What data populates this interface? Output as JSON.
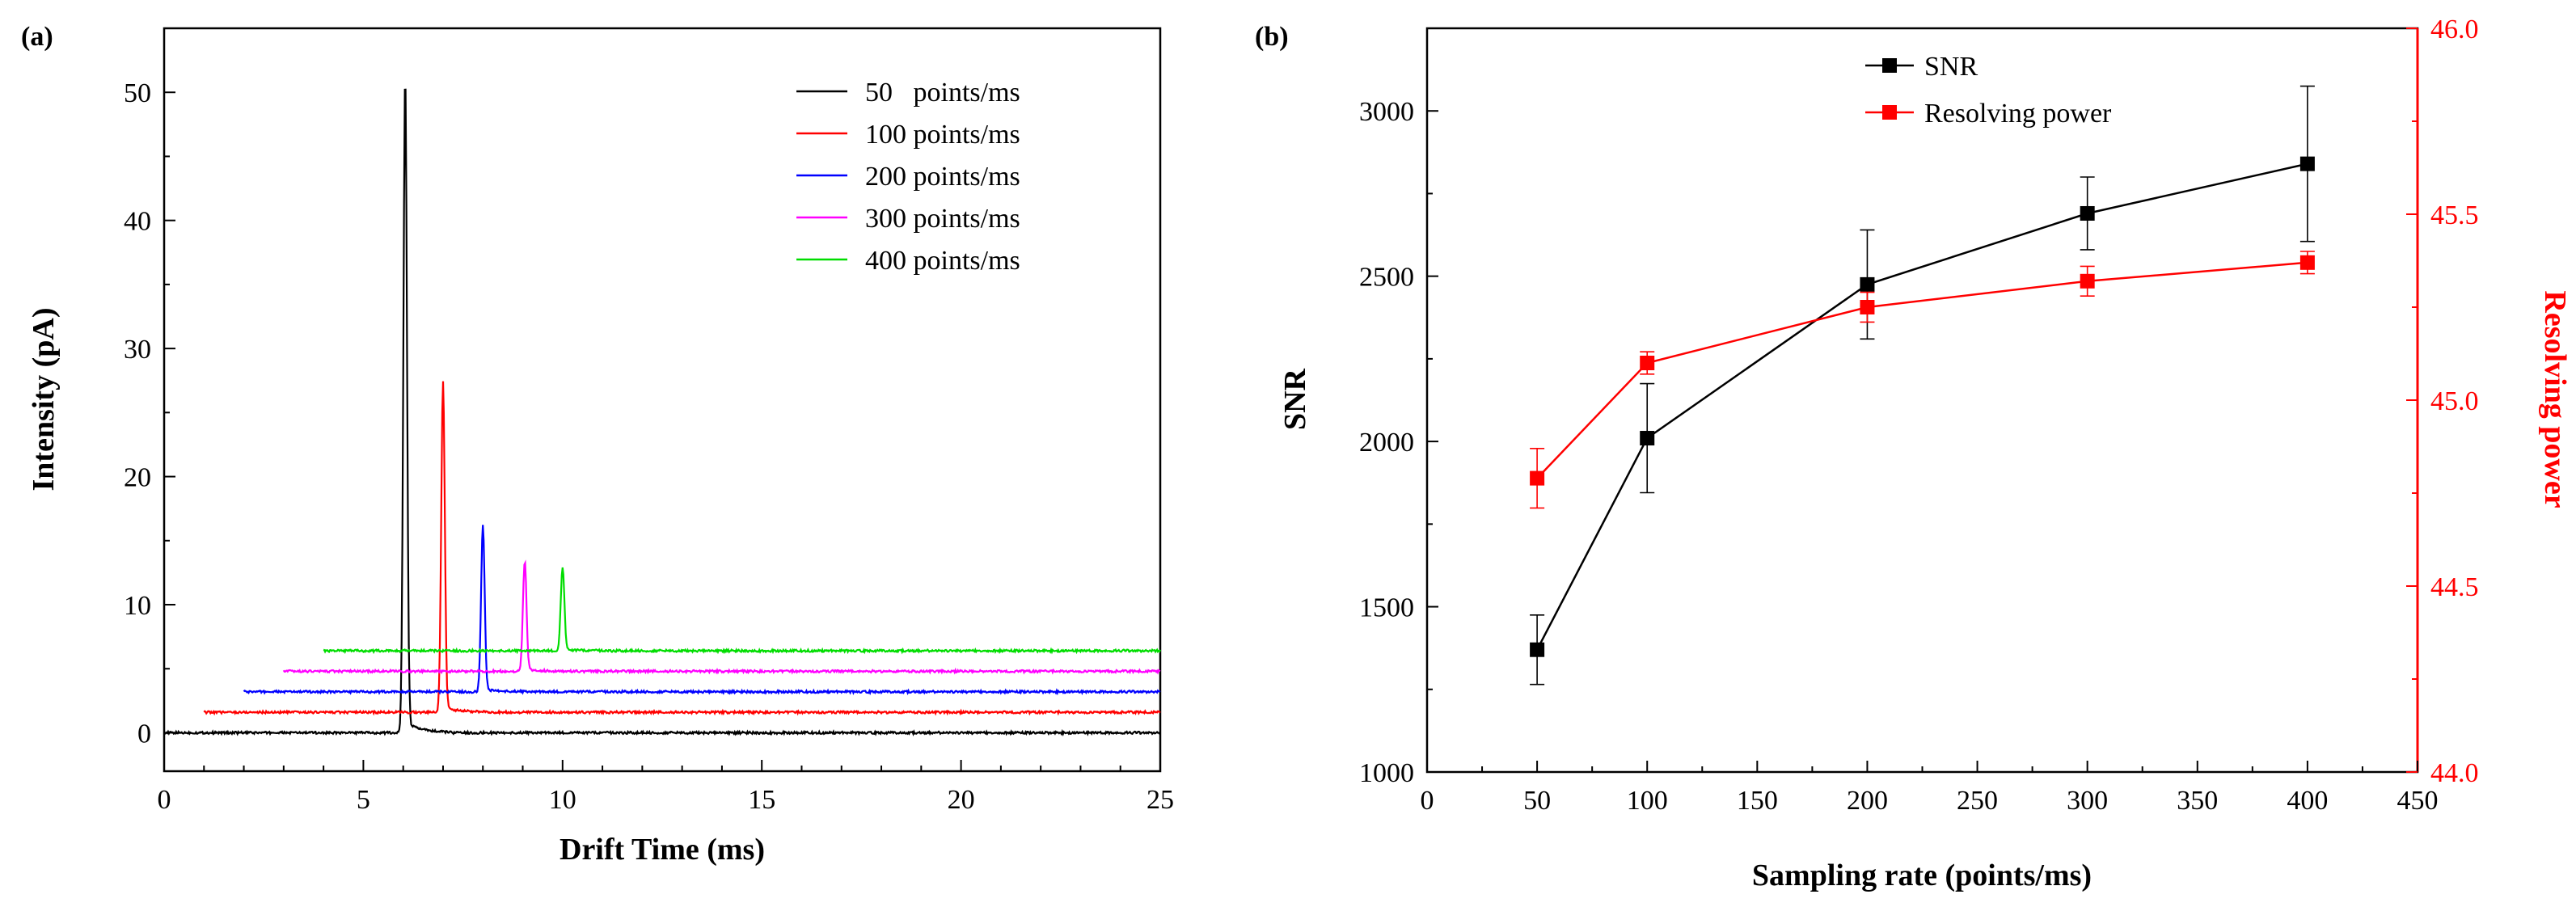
{
  "panel_a": {
    "label": "(a)",
    "chart_data": {
      "type": "line",
      "xlabel": "Drift Time (ms)",
      "ylabel": "Intensity (pA)",
      "xlim": [
        0,
        25
      ],
      "ylim": [
        -3,
        55
      ],
      "xticks": [
        0,
        5,
        10,
        15,
        20,
        25
      ],
      "yticks": [
        0,
        10,
        20,
        30,
        40,
        50
      ],
      "legend_position": "top-right",
      "series": [
        {
          "name": "50   points/ms",
          "color": "#000000",
          "start": 0,
          "baseline": 0.0,
          "peak_x": 6.05,
          "peak_height": 51.5
        },
        {
          "name": "100 points/ms",
          "color": "#ff0000",
          "start": 1,
          "baseline": 1.6,
          "peak_x": 7.0,
          "peak_height": 25.8
        },
        {
          "name": "200 points/ms",
          "color": "#0000ff",
          "start": 2,
          "baseline": 3.2,
          "peak_x": 8.0,
          "peak_height": 13.1
        },
        {
          "name": "300 points/ms",
          "color": "#ff00ff",
          "start": 3,
          "baseline": 4.8,
          "peak_x": 9.05,
          "peak_height": 8.6
        },
        {
          "name": "400 points/ms",
          "color": "#00dd00",
          "start": 4,
          "baseline": 6.4,
          "peak_x": 10.0,
          "peak_height": 6.5
        }
      ]
    }
  },
  "panel_b": {
    "label": "(b)",
    "chart_data": {
      "type": "line",
      "xlabel": "Sampling rate (points/ms)",
      "ylabel": "SNR",
      "y2label": "Resolving power",
      "xlim": [
        0,
        450
      ],
      "ylim": [
        1000,
        3250
      ],
      "y2lim": [
        44.0,
        46.0
      ],
      "xticks": [
        0,
        50,
        100,
        150,
        200,
        250,
        300,
        350,
        400,
        450
      ],
      "yticks": [
        1000,
        1500,
        2000,
        2500,
        3000
      ],
      "y2ticks": [
        "44.0",
        "44.5",
        "45.0",
        "45.5",
        "46.0"
      ],
      "legend_position": "top-center",
      "x": [
        50,
        100,
        200,
        300,
        400
      ],
      "series": [
        {
          "name": "SNR",
          "axis": "left",
          "color": "#000000",
          "values": [
            1370,
            2010,
            2475,
            2690,
            2840
          ],
          "errors": [
            105,
            165,
            165,
            110,
            235
          ]
        },
        {
          "name": "Resolving power",
          "axis": "right",
          "color": "#ff0000",
          "values": [
            44.79,
            45.1,
            45.25,
            45.32,
            45.37
          ],
          "errors": [
            0.08,
            0.03,
            0.04,
            0.04,
            0.03
          ]
        }
      ]
    }
  }
}
